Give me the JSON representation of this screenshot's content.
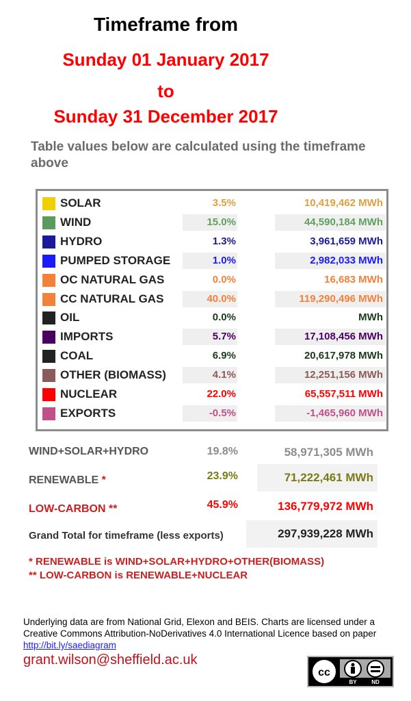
{
  "header": {
    "line1": "Timeframe from",
    "line2": "Sunday 01 January 2017",
    "line3": "to",
    "line4": "Sunday 31 December 2017"
  },
  "subtitle": "Table values below are calculated using the timeframe above",
  "colors": {
    "solar": "#f0d000",
    "wind": "#5a9a5a",
    "hydro": "#1a1a9a",
    "pumped_storage": "#1a1aff",
    "oc_gas": "#f4813a",
    "cc_gas": "#f4813a",
    "oil": "#222222",
    "imports": "#4a0060",
    "coal": "#222222",
    "biomass": "#8b5a5a",
    "nuclear": "#ff0000",
    "exports": "#c0508a",
    "title_red": "#ff0000",
    "note_red": "#cc1f1f",
    "grey": "#8c8c8c"
  },
  "sources": [
    {
      "label": "SOLAR",
      "pct": "3.5%",
      "mwh": "10,419,462 MWh",
      "color": "#f0d000",
      "text": "#e0a040",
      "shade": false
    },
    {
      "label": "WIND",
      "pct": "15.0%",
      "mwh": "44,590,184 MWh",
      "color": "#5a9a5a",
      "text": "#5fa05f",
      "shade": true
    },
    {
      "label": "HYDRO",
      "pct": "1.3%",
      "mwh": "3,961,659 MWh",
      "color": "#1a1a9a",
      "text": "#1a1a9a",
      "shade": false
    },
    {
      "label": "PUMPED STORAGE",
      "pct": "1.0%",
      "mwh": "2,982,033 MWh",
      "color": "#1a1aff",
      "text": "#1a1aff",
      "shade": true
    },
    {
      "label": "OC NATURAL GAS",
      "pct": "0.0%",
      "mwh": "16,683 MWh",
      "color": "#f4813a",
      "text": "#f4813a",
      "shade": false
    },
    {
      "label": "CC NATURAL GAS",
      "pct": "40.0%",
      "mwh": "119,290,496 MWh",
      "color": "#f4813a",
      "text": "#f4813a",
      "shade": true
    },
    {
      "label": "OIL",
      "pct": "0.0%",
      "mwh": "MWh",
      "color": "#222222",
      "text": "#1a3a1a",
      "shade": false
    },
    {
      "label": "IMPORTS",
      "pct": "5.7%",
      "mwh": "17,108,456 MWh",
      "color": "#4a0060",
      "text": "#4a0060",
      "shade": true
    },
    {
      "label": "COAL",
      "pct": "6.9%",
      "mwh": "20,617,978 MWh",
      "color": "#222222",
      "text": "#1a3a1a",
      "shade": false
    },
    {
      "label": "OTHER (BIOMASS)",
      "pct": "4.1%",
      "mwh": "12,251,156 MWh",
      "color": "#8b5a5a",
      "text": "#8b5a5a",
      "shade": true
    },
    {
      "label": "NUCLEAR",
      "pct": "22.0%",
      "mwh": "65,557,511 MWh",
      "color": "#ff0000",
      "text": "#ff0000",
      "shade": false
    },
    {
      "label": "EXPORTS",
      "pct": "-0.5%",
      "mwh": "-1,465,960 MWh",
      "color": "#c0508a",
      "text": "#c0508a",
      "shade": true
    }
  ],
  "summary": {
    "wsh": {
      "label": "WIND+SOLAR+HYDRO",
      "pct": "19.8%",
      "mwh": "58,971,305 MWh"
    },
    "renewable": {
      "label": "RENEWABLE *",
      "pct": "23.9%",
      "mwh": "71,222,461 MWh"
    },
    "lowcarbon": {
      "label": "LOW-CARBON **",
      "pct": "45.9%",
      "mwh": "136,779,972 MWh"
    },
    "total": {
      "label": "Grand Total for timeframe (less exports)",
      "mwh": "297,939,228 MWh"
    }
  },
  "notes": {
    "n1": "* RENEWABLE is WIND+SOLAR+HYDRO+OTHER(BIOMASS)",
    "n2": "** LOW-CARBON is RENEWABLE+NUCLEAR"
  },
  "footer": {
    "text1": "Underlying data are from National Grid, Elexon and BEIS. Charts are licensed under a Creative Commons Attribution-NoDerivatives 4.0 International Licence based on paper ",
    "link": "http://bit.ly/saediagram",
    "email": "grant.wilson@sheffield.ac.uk"
  },
  "license": {
    "by": "BY",
    "nd": "ND",
    "cc": "cc"
  }
}
